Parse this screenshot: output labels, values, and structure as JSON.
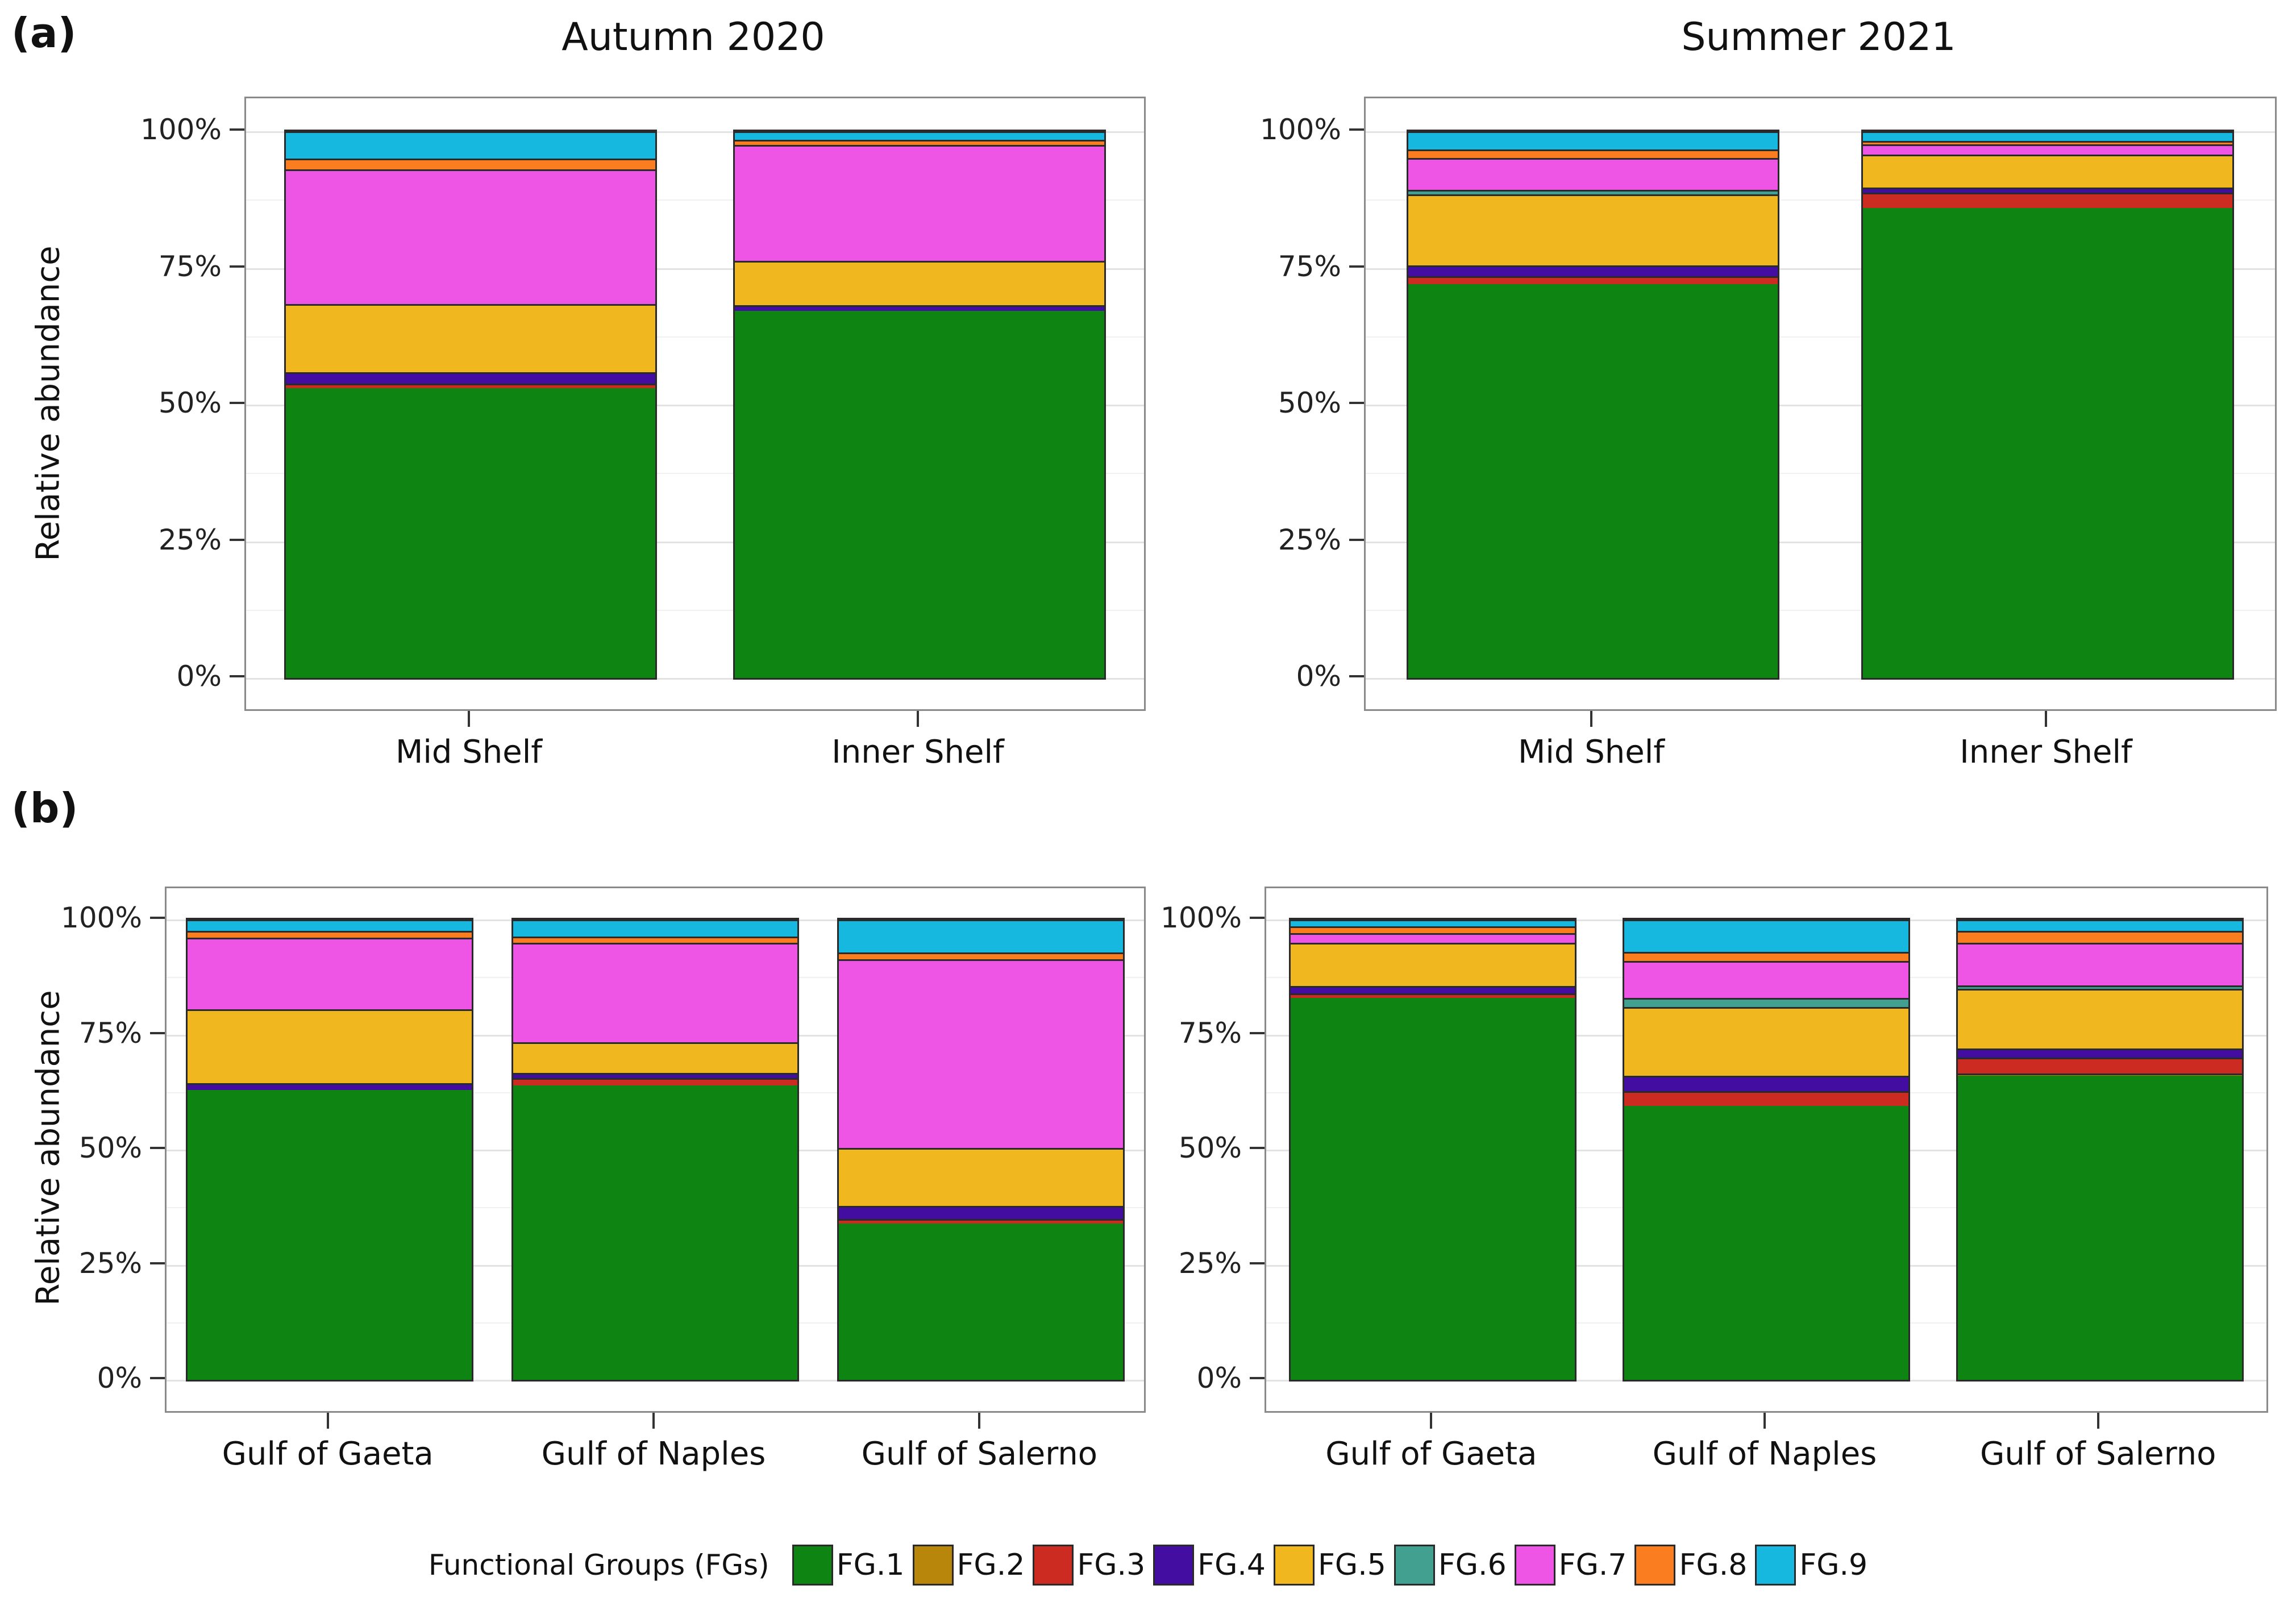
{
  "figure": {
    "panel_labels": {
      "a": "(a)",
      "b": "(b)"
    },
    "y_axis_label": "Relative abundance",
    "y_ticks": [
      {
        "label": "0%",
        "value": 0
      },
      {
        "label": "25%",
        "value": 25
      },
      {
        "label": "50%",
        "value": 50
      },
      {
        "label": "75%",
        "value": 75
      },
      {
        "label": "100%",
        "value": 100
      }
    ],
    "legend": {
      "title": "Functional Groups (FGs)",
      "items": [
        {
          "label": "FG.1",
          "color": "#0E8412"
        },
        {
          "label": "FG.2",
          "color": "#B8860B"
        },
        {
          "label": "FG.3",
          "color": "#CC2B21"
        },
        {
          "label": "FG.4",
          "color": "#420DA0"
        },
        {
          "label": "FG.5",
          "color": "#F1B71E"
        },
        {
          "label": "FG.6",
          "color": "#41A08F"
        },
        {
          "label": "FG.7",
          "color": "#EE55E4"
        },
        {
          "label": "FG.8",
          "color": "#FA7E20"
        },
        {
          "label": "FG.9",
          "color": "#16B8E0"
        }
      ]
    }
  },
  "chart_data": [
    {
      "type": "bar",
      "stacked": true,
      "title": "Autumn 2020",
      "xlabel": "",
      "ylabel": "Relative abundance",
      "ylim": [
        0,
        100
      ],
      "grid": true,
      "legend_position": "bottom",
      "categories": [
        "Mid Shelf",
        "Inner Shelf"
      ],
      "series": [
        {
          "name": "FG.1",
          "values": [
            53.0,
            67.2
          ]
        },
        {
          "name": "FG.3",
          "values": [
            0.8,
            0
          ]
        },
        {
          "name": "FG.4",
          "values": [
            2.1,
            1.0
          ]
        },
        {
          "name": "FG.5",
          "values": [
            12.5,
            8.1
          ]
        },
        {
          "name": "FG.7",
          "values": [
            24.6,
            21.2
          ]
        },
        {
          "name": "FG.8",
          "values": [
            2.0,
            0.9
          ]
        },
        {
          "name": "FG.9",
          "values": [
            5.0,
            1.6
          ]
        }
      ]
    },
    {
      "type": "bar",
      "stacked": true,
      "title": "Summer 2021",
      "xlabel": "",
      "ylabel": "Relative abundance",
      "ylim": [
        0,
        100
      ],
      "grid": true,
      "legend_position": "bottom",
      "categories": [
        "Mid Shelf",
        "Inner Shelf"
      ],
      "series": [
        {
          "name": "FG.1",
          "values": [
            72.0,
            86.0
          ]
        },
        {
          "name": "FG.3",
          "values": [
            1.5,
            2.8
          ]
        },
        {
          "name": "FG.4",
          "values": [
            2.0,
            0.9
          ]
        },
        {
          "name": "FG.5",
          "values": [
            13.0,
            6.0
          ]
        },
        {
          "name": "FG.6",
          "values": [
            0.8,
            0
          ]
        },
        {
          "name": "FG.7",
          "values": [
            5.8,
            1.9
          ]
        },
        {
          "name": "FG.8",
          "values": [
            1.6,
            0.6
          ]
        },
        {
          "name": "FG.9",
          "values": [
            3.3,
            1.8
          ]
        }
      ]
    },
    {
      "type": "bar",
      "stacked": true,
      "title": "",
      "xlabel": "",
      "ylabel": "Relative abundance",
      "ylim": [
        0,
        100
      ],
      "grid": true,
      "legend_position": "bottom",
      "categories": [
        "Gulf of Gaeta",
        "Gulf of Naples",
        "Gulf of Salerno"
      ],
      "series": [
        {
          "name": "FG.1",
          "values": [
            63.0,
            64.0,
            34.0
          ]
        },
        {
          "name": "FG.3",
          "values": [
            0,
            1.5,
            1.0
          ]
        },
        {
          "name": "FG.4",
          "values": [
            1.5,
            1.2,
            2.8
          ]
        },
        {
          "name": "FG.5",
          "values": [
            16.0,
            6.6,
            12.6
          ]
        },
        {
          "name": "FG.7",
          "values": [
            15.5,
            21.7,
            41.0
          ]
        },
        {
          "name": "FG.8",
          "values": [
            1.5,
            1.3,
            1.4
          ]
        },
        {
          "name": "FG.9",
          "values": [
            2.5,
            3.7,
            7.2
          ]
        }
      ]
    },
    {
      "type": "bar",
      "stacked": true,
      "title": "",
      "xlabel": "",
      "ylabel": "Relative abundance",
      "ylim": [
        0,
        100
      ],
      "grid": true,
      "legend_position": "bottom",
      "categories": [
        "Gulf of Gaeta",
        "Gulf of Naples",
        "Gulf of Salerno"
      ],
      "series": [
        {
          "name": "FG.1",
          "values": [
            83.0,
            59.5,
            66.0
          ]
        },
        {
          "name": "FG.2",
          "values": [
            0,
            0,
            0.5
          ]
        },
        {
          "name": "FG.3",
          "values": [
            1.0,
            3.2,
            3.5
          ]
        },
        {
          "name": "FG.4",
          "values": [
            1.5,
            3.3,
            2.0
          ]
        },
        {
          "name": "FG.5",
          "values": [
            9.5,
            15.0,
            13.0
          ]
        },
        {
          "name": "FG.6",
          "values": [
            0,
            2.0,
            0.7
          ]
        },
        {
          "name": "FG.7",
          "values": [
            2.0,
            8.0,
            9.3
          ]
        },
        {
          "name": "FG.8",
          "values": [
            1.5,
            2.0,
            2.5
          ]
        },
        {
          "name": "FG.9",
          "values": [
            1.5,
            7.0,
            2.5
          ]
        }
      ]
    }
  ]
}
